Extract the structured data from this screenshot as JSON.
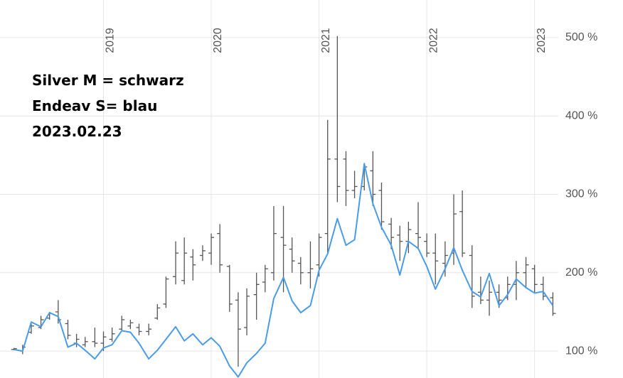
{
  "chart_data": {
    "type": "ohlc",
    "annotations": [
      "Silver M  =   schwarz",
      "Endeav S=   blau",
      "2023.02.23"
    ],
    "x": [
      2018.17,
      2018.25,
      2018.33,
      2018.42,
      2018.5,
      2018.58,
      2018.67,
      2018.75,
      2018.83,
      2018.92,
      2019,
      2019.08,
      2019.17,
      2019.25,
      2019.33,
      2019.42,
      2019.5,
      2019.58,
      2019.67,
      2019.75,
      2019.83,
      2019.92,
      2020,
      2020.08,
      2020.17,
      2020.25,
      2020.33,
      2020.42,
      2020.5,
      2020.58,
      2020.67,
      2020.75,
      2020.83,
      2020.92,
      2021,
      2021.08,
      2021.17,
      2021.25,
      2021.33,
      2021.42,
      2021.5,
      2021.58,
      2021.67,
      2021.75,
      2021.83,
      2021.92,
      2022,
      2022.08,
      2022.17,
      2022.25,
      2022.33,
      2022.42,
      2022.5,
      2022.58,
      2022.67,
      2022.75,
      2022.83,
      2022.92,
      2023,
      2023.08,
      2023.17
    ],
    "series": [
      {
        "type": "ohlc",
        "color": "#555555",
        "open": [
          102,
          100,
          124,
          130,
          142,
          150,
          135,
          110,
          108,
          112,
          110,
          115,
          128,
          132,
          130,
          125,
          142,
          160,
          195,
          190,
          220,
          222,
          225,
          250,
          208,
          165,
          130,
          172,
          188,
          200,
          245,
          230,
          212,
          200,
          210,
          250,
          345,
          345,
          305,
          310,
          330,
          305,
          262,
          248,
          240,
          250,
          240,
          225,
          212,
          225,
          278,
          222,
          175,
          165,
          175,
          168,
          185,
          200,
          205,
          185,
          168
        ],
        "high": [
          104,
          108,
          135,
          145,
          150,
          165,
          140,
          122,
          118,
          130,
          125,
          130,
          145,
          140,
          135,
          135,
          160,
          195,
          240,
          245,
          230,
          235,
          250,
          262,
          210,
          175,
          180,
          200,
          210,
          285,
          285,
          245,
          220,
          240,
          250,
          395,
          502,
          355,
          330,
          340,
          355,
          315,
          270,
          260,
          265,
          290,
          250,
          250,
          240,
          300,
          305,
          235,
          195,
          190,
          185,
          195,
          215,
          220,
          210,
          195,
          175
        ],
        "low": [
          101,
          96,
          122,
          128,
          140,
          135,
          115,
          105,
          105,
          105,
          100,
          112,
          125,
          128,
          120,
          120,
          140,
          155,
          185,
          185,
          190,
          215,
          210,
          200,
          150,
          80,
          120,
          140,
          175,
          190,
          175,
          200,
          185,
          180,
          195,
          225,
          290,
          285,
          295,
          305,
          285,
          255,
          230,
          215,
          225,
          230,
          220,
          185,
          195,
          210,
          220,
          155,
          160,
          145,
          155,
          165,
          165,
          180,
          175,
          165,
          145
        ],
        "close": [
          103,
          105,
          132,
          140,
          148,
          140,
          120,
          115,
          112,
          110,
          118,
          122,
          140,
          136,
          125,
          128,
          155,
          192,
          225,
          225,
          210,
          228,
          245,
          210,
          160,
          128,
          170,
          185,
          205,
          250,
          235,
          215,
          200,
          205,
          245,
          345,
          310,
          305,
          310,
          335,
          300,
          265,
          245,
          240,
          255,
          245,
          225,
          215,
          222,
          275,
          225,
          170,
          165,
          175,
          165,
          185,
          200,
          210,
          185,
          170,
          148
        ]
      },
      {
        "type": "line",
        "color": "#4a9be8",
        "values": [
          102,
          100,
          137,
          131,
          149,
          144,
          105,
          110,
          101,
          90,
          104,
          108,
          126,
          124,
          110,
          90,
          101,
          115,
          131,
          113,
          122,
          108,
          117,
          106,
          81,
          67,
          85,
          97,
          110,
          167,
          194,
          164,
          149,
          158,
          203,
          224,
          269,
          235,
          242,
          339,
          288,
          258,
          235,
          197,
          240,
          231,
          208,
          179,
          205,
          232,
          203,
          176,
          169,
          199,
          158,
          172,
          192,
          181,
          174,
          176,
          158
        ]
      }
    ],
    "xlim": [
      2018.04,
      2023.22
    ],
    "xticks": [
      2019,
      2020,
      2021,
      2022,
      2023
    ],
    "ylim": [
      65.6,
      548
    ],
    "yticks": [
      {
        "value": 100,
        "label": "100 %"
      },
      {
        "value": 200,
        "label": "200 %"
      },
      {
        "value": 300,
        "label": "300 %"
      },
      {
        "value": 400,
        "label": "400 %"
      },
      {
        "value": 500,
        "label": "500 %"
      }
    ],
    "grid": true
  }
}
